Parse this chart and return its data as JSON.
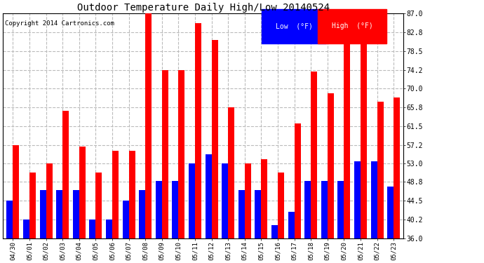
{
  "title": "Outdoor Temperature Daily High/Low 20140524",
  "copyright": "Copyright 2014 Cartronics.com",
  "dates": [
    "04/30",
    "05/01",
    "05/02",
    "05/03",
    "05/04",
    "05/05",
    "05/06",
    "05/07",
    "05/08",
    "05/09",
    "05/10",
    "05/11",
    "05/12",
    "05/13",
    "05/14",
    "05/15",
    "05/16",
    "05/17",
    "05/18",
    "05/19",
    "05/20",
    "05/21",
    "05/22",
    "05/23"
  ],
  "highs": [
    57.2,
    50.9,
    53.0,
    64.9,
    56.8,
    50.9,
    55.9,
    55.9,
    87.0,
    74.2,
    74.2,
    84.9,
    81.0,
    65.8,
    53.0,
    54.0,
    51.0,
    62.0,
    73.9,
    68.9,
    87.0,
    87.0,
    67.0,
    68.0
  ],
  "lows": [
    44.5,
    40.2,
    46.9,
    46.9,
    46.9,
    40.2,
    40.2,
    44.5,
    46.9,
    49.0,
    49.0,
    53.0,
    55.0,
    53.0,
    46.9,
    46.9,
    39.0,
    42.0,
    49.0,
    49.0,
    49.0,
    53.5,
    53.5,
    47.8
  ],
  "high_color": "#ff0000",
  "low_color": "#0000ff",
  "bg_color": "#ffffff",
  "ymin": 36.0,
  "ymax": 87.0,
  "yticks": [
    36.0,
    40.2,
    44.5,
    48.8,
    53.0,
    57.2,
    61.5,
    65.8,
    70.0,
    74.2,
    78.5,
    82.8,
    87.0
  ],
  "grid_color": "#bbbbbb",
  "legend_low_label": "Low  (°F)",
  "legend_high_label": "High  (°F)"
}
